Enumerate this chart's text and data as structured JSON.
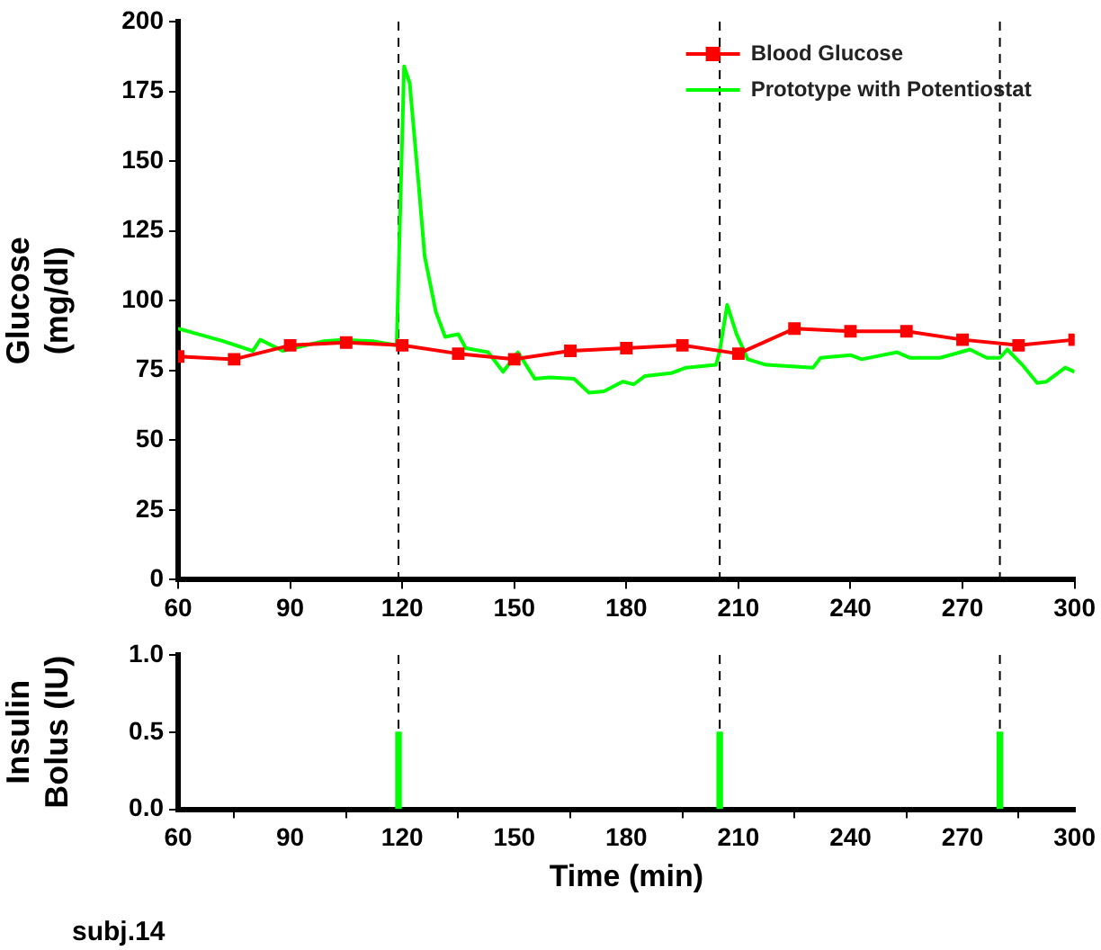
{
  "chart_data": [
    {
      "type": "line",
      "ylabel": "Glucose (mg/dl)",
      "xlim": [
        60,
        300
      ],
      "xticks": [
        60,
        90,
        120,
        150,
        180,
        210,
        240,
        270,
        300
      ],
      "ylim": [
        0,
        200
      ],
      "yticks": [
        0,
        25,
        50,
        75,
        100,
        125,
        150,
        175,
        200
      ],
      "grid": false,
      "legend": "top right",
      "line_style": "solid",
      "series": [
        {
          "name": "Blood Glucose",
          "color": "#ff0000",
          "marker": "square",
          "x": [
            60,
            75,
            90,
            105,
            120,
            135,
            150,
            165,
            180,
            195,
            210,
            225,
            240,
            255,
            270,
            285,
            300
          ],
          "values": [
            80,
            79,
            84,
            85,
            84,
            81,
            79,
            82,
            83,
            84,
            81,
            90,
            89,
            89,
            86,
            84,
            86
          ]
        },
        {
          "name": "Prototype with Potentiostat",
          "color": "#00ff00",
          "marker": "none",
          "x": [
            60,
            72,
            80,
            82,
            88,
            99,
            104,
            112,
            118.5,
            119.5,
            120.5,
            122,
            124.5,
            126,
            129,
            131.5,
            135,
            137,
            143,
            147,
            151,
            155.5,
            159.5,
            166,
            170,
            174,
            179,
            182,
            185,
            192,
            196,
            204,
            205,
            207,
            209.5,
            212.5,
            217.5,
            230,
            232,
            240,
            243,
            252.5,
            256,
            264,
            272,
            276.5,
            280,
            282,
            286,
            290,
            292.5,
            297.5,
            300
          ],
          "values": [
            90,
            85.5,
            82,
            86,
            82,
            85.5,
            86,
            85.5,
            84,
            134,
            184,
            178,
            140,
            116,
            96,
            87,
            88,
            83,
            81.5,
            74.5,
            81.5,
            72,
            72.5,
            72,
            67,
            67.5,
            71,
            70,
            73,
            74,
            76,
            77,
            82,
            98.5,
            88,
            79,
            77,
            76,
            79.5,
            80.5,
            79,
            81.5,
            79.5,
            79.5,
            82.5,
            79.5,
            79.5,
            82.5,
            77,
            70.5,
            71,
            76,
            74.5
          ]
        }
      ],
      "ref_lines": [
        {
          "axis": "x",
          "value": 119,
          "color": "#000000",
          "line_style": "dashed"
        },
        {
          "axis": "x",
          "value": 205,
          "color": "#000000",
          "line_style": "dashed"
        },
        {
          "axis": "x",
          "value": 280,
          "color": "#000000",
          "line_style": "dashed"
        }
      ]
    },
    {
      "type": "bar",
      "xlabel": "Time (min)",
      "ylabel": "Insulin Bolus (IU)",
      "xlim": [
        60,
        300
      ],
      "xticks": [
        60,
        90,
        120,
        150,
        180,
        210,
        240,
        270,
        300
      ],
      "ylim": [
        0,
        1
      ],
      "yticks": [
        {
          "value": 0,
          "label": "0.0"
        },
        {
          "value": 0.5,
          "label": "0.5"
        },
        {
          "value": 1,
          "label": "1.0"
        }
      ],
      "grid": false,
      "annotations": [
        "subj.14"
      ],
      "series": [
        {
          "color": "#00ff00",
          "x": [
            119,
            205,
            280
          ],
          "values": [
            0.5,
            0.5,
            0.5
          ]
        }
      ],
      "ref_lines": [
        {
          "axis": "x",
          "value": 119,
          "color": "#000000",
          "line_style": "dashed"
        },
        {
          "axis": "x",
          "value": 205,
          "color": "#000000",
          "line_style": "dashed"
        },
        {
          "axis": "x",
          "value": 280,
          "color": "#000000",
          "line_style": "dashed"
        }
      ]
    }
  ]
}
